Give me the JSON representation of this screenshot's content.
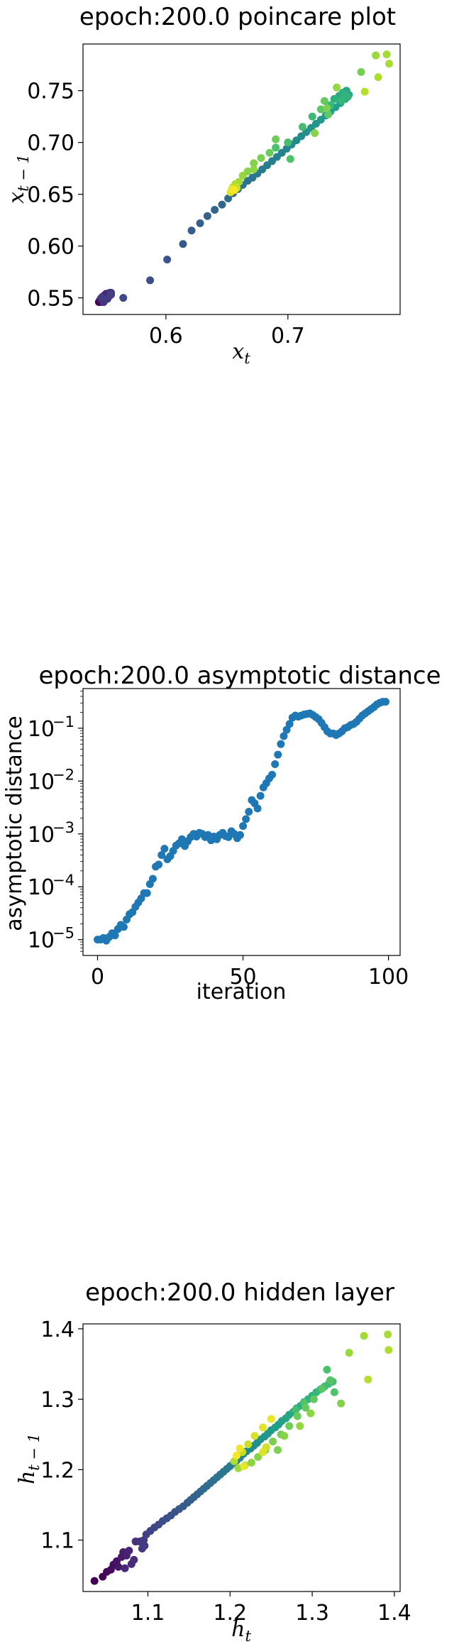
{
  "chart_data": [
    {
      "type": "scatter",
      "title": "epoch:200.0 poincare plot",
      "xlabel": "x_t",
      "ylabel": "x_{t-1}",
      "xticks": [
        {
          "v": 0.6,
          "label": "0.6"
        },
        {
          "v": 0.7,
          "label": "0.7"
        }
      ],
      "yticks": [
        {
          "v": 0.55,
          "label": "0.55"
        },
        {
          "v": 0.6,
          "label": "0.60"
        },
        {
          "v": 0.65,
          "label": "0.65"
        },
        {
          "v": 0.7,
          "label": "0.70"
        },
        {
          "v": 0.75,
          "label": "0.75"
        }
      ],
      "xlim": [
        0.532,
        0.792
      ],
      "ylim": [
        0.534,
        0.795
      ],
      "colormap": "viridis (color encodes iteration)",
      "points": [
        [
          0.545,
          0.546,
          0.0
        ],
        [
          0.546,
          0.547,
          0.01
        ],
        [
          0.547,
          0.546,
          0.02
        ],
        [
          0.548,
          0.548,
          0.03
        ],
        [
          0.546,
          0.548,
          0.04
        ],
        [
          0.549,
          0.549,
          0.05
        ],
        [
          0.548,
          0.551,
          0.06
        ],
        [
          0.55,
          0.55,
          0.07
        ],
        [
          0.551,
          0.552,
          0.08
        ],
        [
          0.55,
          0.553,
          0.09
        ],
        [
          0.552,
          0.552,
          0.1
        ],
        [
          0.553,
          0.554,
          0.11
        ],
        [
          0.551,
          0.554,
          0.12
        ],
        [
          0.554,
          0.555,
          0.13
        ],
        [
          0.553,
          0.551,
          0.14
        ],
        [
          0.555,
          0.555,
          0.15
        ],
        [
          0.549,
          0.546,
          0.16
        ],
        [
          0.552,
          0.549,
          0.17
        ],
        [
          0.547,
          0.55,
          0.18
        ],
        [
          0.555,
          0.553,
          0.19
        ],
        [
          0.565,
          0.55,
          0.22
        ],
        [
          0.587,
          0.567,
          0.24
        ],
        [
          0.601,
          0.587,
          0.26
        ],
        [
          0.614,
          0.602,
          0.28
        ],
        [
          0.621,
          0.615,
          0.29
        ],
        [
          0.628,
          0.622,
          0.3
        ],
        [
          0.634,
          0.629,
          0.31
        ],
        [
          0.64,
          0.635,
          0.32
        ],
        [
          0.646,
          0.64,
          0.33
        ],
        [
          0.651,
          0.646,
          0.34
        ],
        [
          0.655,
          0.651,
          0.35
        ],
        [
          0.659,
          0.655,
          0.36
        ],
        [
          0.663,
          0.659,
          0.37
        ],
        [
          0.667,
          0.663,
          0.38
        ],
        [
          0.671,
          0.666,
          0.39
        ],
        [
          0.675,
          0.67,
          0.4
        ],
        [
          0.679,
          0.674,
          0.41
        ],
        [
          0.683,
          0.678,
          0.42
        ],
        [
          0.687,
          0.682,
          0.43
        ],
        [
          0.691,
          0.686,
          0.44
        ],
        [
          0.695,
          0.69,
          0.45
        ],
        [
          0.699,
          0.694,
          0.46
        ],
        [
          0.703,
          0.698,
          0.47
        ],
        [
          0.707,
          0.702,
          0.48
        ],
        [
          0.711,
          0.706,
          0.49
        ],
        [
          0.715,
          0.71,
          0.5
        ],
        [
          0.719,
          0.714,
          0.51
        ],
        [
          0.723,
          0.718,
          0.52
        ],
        [
          0.727,
          0.722,
          0.53
        ],
        [
          0.731,
          0.726,
          0.54
        ],
        [
          0.735,
          0.73,
          0.55
        ],
        [
          0.739,
          0.734,
          0.56
        ],
        [
          0.743,
          0.738,
          0.57
        ],
        [
          0.747,
          0.742,
          0.58
        ],
        [
          0.75,
          0.746,
          0.59
        ],
        [
          0.748,
          0.75,
          0.6
        ],
        [
          0.745,
          0.748,
          0.61
        ],
        [
          0.742,
          0.745,
          0.62
        ],
        [
          0.738,
          0.742,
          0.63
        ],
        [
          0.746,
          0.747,
          0.64
        ],
        [
          0.749,
          0.744,
          0.65
        ],
        [
          0.744,
          0.74,
          0.66
        ],
        [
          0.735,
          0.736,
          0.67
        ],
        [
          0.72,
          0.725,
          0.68
        ],
        [
          0.7,
          0.7,
          0.7
        ],
        [
          0.712,
          0.715,
          0.69
        ],
        [
          0.69,
          0.695,
          0.71
        ],
        [
          0.702,
          0.684,
          0.72
        ],
        [
          0.727,
          0.732,
          0.74
        ],
        [
          0.733,
          0.727,
          0.75
        ],
        [
          0.685,
          0.69,
          0.77
        ],
        [
          0.69,
          0.703,
          0.78
        ],
        [
          0.678,
          0.685,
          0.8
        ],
        [
          0.672,
          0.68,
          0.81
        ],
        [
          0.667,
          0.672,
          0.82
        ],
        [
          0.663,
          0.668,
          0.84
        ],
        [
          0.672,
          0.674,
          0.83
        ],
        [
          0.66,
          0.662,
          0.86
        ],
        [
          0.657,
          0.66,
          0.88
        ],
        [
          0.655,
          0.657,
          0.9
        ],
        [
          0.658,
          0.656,
          0.92
        ],
        [
          0.653,
          0.652,
          0.95
        ],
        [
          0.654,
          0.655,
          0.97
        ],
        [
          0.656,
          0.654,
          0.99
        ],
        [
          0.73,
          0.74,
          0.76
        ],
        [
          0.76,
          0.768,
          0.79
        ],
        [
          0.772,
          0.784,
          0.85
        ],
        [
          0.781,
          0.785,
          0.86
        ],
        [
          0.783,
          0.776,
          0.87
        ],
        [
          0.774,
          0.763,
          0.88
        ],
        [
          0.763,
          0.749,
          0.89
        ],
        [
          0.74,
          0.753,
          0.84
        ],
        [
          0.722,
          0.709,
          0.82
        ],
        [
          0.732,
          0.733,
          0.8
        ]
      ]
    },
    {
      "type": "scatter",
      "title": "epoch:200.0 asymptotic distance",
      "xlabel": "iteration",
      "ylabel": "asymptotic distance",
      "yscale": "log",
      "xticks": [
        {
          "v": 0,
          "label": "0"
        },
        {
          "v": 50,
          "label": "50"
        },
        {
          "v": 100,
          "label": "100"
        }
      ],
      "yticks": [
        {
          "v": -5,
          "label": "10",
          "exp": "−5"
        },
        {
          "v": -4,
          "label": "10",
          "exp": "−4"
        },
        {
          "v": -3,
          "label": "10",
          "exp": "−3"
        },
        {
          "v": -2,
          "label": "10",
          "exp": "−2"
        },
        {
          "v": -1,
          "label": "10",
          "exp": "−1"
        }
      ],
      "xlim": [
        -5,
        104
      ],
      "ylim_log10": [
        -5.3,
        -0.25
      ],
      "color": "#1f77b4",
      "y_log10": [
        -5.0,
        -5.0,
        -4.97,
        -5.02,
        -4.95,
        -4.88,
        -4.92,
        -4.8,
        -4.72,
        -4.76,
        -4.62,
        -4.52,
        -4.48,
        -4.38,
        -4.3,
        -4.22,
        -4.12,
        -4.12,
        -3.95,
        -3.85,
        -3.62,
        -3.58,
        -3.4,
        -3.28,
        -3.48,
        -3.42,
        -3.32,
        -3.22,
        -3.18,
        -3.1,
        -3.23,
        -3.14,
        -3.06,
        -3.0,
        -3.05,
        -2.98,
        -3.0,
        -3.06,
        -3.02,
        -3.12,
        -3.05,
        -3.1,
        -3.02,
        -2.98,
        -3.04,
        -3.06,
        -2.95,
        -3.0,
        -3.08,
        -3.02,
        -2.85,
        -2.72,
        -2.58,
        -2.36,
        -2.42,
        -2.52,
        -2.28,
        -2.12,
        -2.04,
        -1.95,
        -1.88,
        -1.68,
        -1.5,
        -1.3,
        -1.15,
        -1.03,
        -0.92,
        -0.8,
        -0.76,
        -0.78,
        -0.76,
        -0.74,
        -0.73,
        -0.72,
        -0.75,
        -0.79,
        -0.83,
        -0.9,
        -0.98,
        -1.06,
        -1.1,
        -1.1,
        -1.13,
        -1.1,
        -1.06,
        -1.0,
        -0.98,
        -0.94,
        -0.92,
        -0.88,
        -0.82,
        -0.76,
        -0.72,
        -0.68,
        -0.64,
        -0.6,
        -0.55,
        -0.52,
        -0.5,
        -0.5
      ]
    },
    {
      "type": "scatter",
      "title": "epoch:200.0 hidden layer",
      "xlabel": "h_t",
      "ylabel": "h_{t-1}",
      "xticks": [
        {
          "v": 1.1,
          "label": "1.1"
        },
        {
          "v": 1.2,
          "label": "1.2"
        },
        {
          "v": 1.3,
          "label": "1.3"
        },
        {
          "v": 1.4,
          "label": "1.4"
        }
      ],
      "yticks": [
        {
          "v": 1.1,
          "label": "1.1"
        },
        {
          "v": 1.2,
          "label": "1.2"
        },
        {
          "v": 1.3,
          "label": "1.3"
        },
        {
          "v": 1.4,
          "label": "1.4"
        }
      ],
      "xlim": [
        1.021,
        1.407
      ],
      "ylim": [
        1.027,
        1.407
      ],
      "colormap": "viridis (color encodes iteration)",
      "points": [
        [
          1.035,
          1.042,
          0.0
        ],
        [
          1.045,
          1.048,
          0.01
        ],
        [
          1.05,
          1.055,
          0.02
        ],
        [
          1.055,
          1.058,
          0.03
        ],
        [
          1.058,
          1.065,
          0.04
        ],
        [
          1.062,
          1.07,
          0.05
        ],
        [
          1.064,
          1.062,
          0.06
        ],
        [
          1.068,
          1.076,
          0.07
        ],
        [
          1.07,
          1.083,
          0.08
        ],
        [
          1.074,
          1.078,
          0.09
        ],
        [
          1.077,
          1.085,
          0.1
        ],
        [
          1.072,
          1.06,
          0.11
        ],
        [
          1.08,
          1.066,
          0.12
        ],
        [
          1.083,
          1.072,
          0.13
        ],
        [
          1.085,
          1.098,
          0.14
        ],
        [
          1.09,
          1.098,
          0.15
        ],
        [
          1.093,
          1.088,
          0.16
        ],
        [
          1.095,
          1.1,
          0.17
        ],
        [
          1.096,
          1.092,
          0.18
        ],
        [
          1.098,
          1.108,
          0.19
        ],
        [
          1.103,
          1.113,
          0.2
        ],
        [
          1.108,
          1.118,
          0.21
        ],
        [
          1.113,
          1.122,
          0.22
        ],
        [
          1.118,
          1.127,
          0.23
        ],
        [
          1.123,
          1.131,
          0.24
        ],
        [
          1.128,
          1.135,
          0.25
        ],
        [
          1.133,
          1.14,
          0.26
        ],
        [
          1.138,
          1.144,
          0.27
        ],
        [
          1.143,
          1.148,
          0.28
        ],
        [
          1.148,
          1.153,
          0.29
        ],
        [
          1.152,
          1.157,
          0.3
        ],
        [
          1.156,
          1.161,
          0.31
        ],
        [
          1.16,
          1.165,
          0.32
        ],
        [
          1.164,
          1.169,
          0.33
        ],
        [
          1.168,
          1.173,
          0.34
        ],
        [
          1.172,
          1.177,
          0.35
        ],
        [
          1.176,
          1.181,
          0.36
        ],
        [
          1.18,
          1.185,
          0.37
        ],
        [
          1.184,
          1.189,
          0.38
        ],
        [
          1.188,
          1.193,
          0.39
        ],
        [
          1.192,
          1.197,
          0.4
        ],
        [
          1.196,
          1.201,
          0.41
        ],
        [
          1.2,
          1.205,
          0.42
        ],
        [
          1.204,
          1.209,
          0.43
        ],
        [
          1.208,
          1.213,
          0.44
        ],
        [
          1.212,
          1.217,
          0.45
        ],
        [
          1.216,
          1.222,
          0.46
        ],
        [
          1.22,
          1.226,
          0.47
        ],
        [
          1.225,
          1.23,
          0.48
        ],
        [
          1.229,
          1.234,
          0.49
        ],
        [
          1.233,
          1.238,
          0.5
        ],
        [
          1.237,
          1.243,
          0.51
        ],
        [
          1.242,
          1.247,
          0.52
        ],
        [
          1.246,
          1.251,
          0.53
        ],
        [
          1.25,
          1.256,
          0.54
        ],
        [
          1.255,
          1.26,
          0.55
        ],
        [
          1.259,
          1.264,
          0.56
        ],
        [
          1.263,
          1.269,
          0.57
        ],
        [
          1.268,
          1.273,
          0.58
        ],
        [
          1.272,
          1.278,
          0.59
        ],
        [
          1.277,
          1.282,
          0.6
        ],
        [
          1.281,
          1.287,
          0.61
        ],
        [
          1.286,
          1.291,
          0.62
        ],
        [
          1.29,
          1.296,
          0.63
        ],
        [
          1.295,
          1.3,
          0.64
        ],
        [
          1.3,
          1.305,
          0.65
        ],
        [
          1.305,
          1.31,
          0.66
        ],
        [
          1.31,
          1.314,
          0.67
        ],
        [
          1.315,
          1.318,
          0.68
        ],
        [
          1.32,
          1.322,
          0.69
        ],
        [
          1.325,
          1.325,
          0.7
        ],
        [
          1.318,
          1.342,
          0.71
        ],
        [
          1.327,
          1.31,
          0.72
        ],
        [
          1.322,
          1.327,
          0.73
        ],
        [
          1.312,
          1.315,
          0.74
        ],
        [
          1.302,
          1.3,
          0.75
        ],
        [
          1.292,
          1.288,
          0.76
        ],
        [
          1.282,
          1.276,
          0.77
        ],
        [
          1.272,
          1.262,
          0.78
        ],
        [
          1.262,
          1.25,
          0.79
        ],
        [
          1.252,
          1.24,
          0.8
        ],
        [
          1.243,
          1.228,
          0.81
        ],
        [
          1.234,
          1.218,
          0.82
        ],
        [
          1.226,
          1.21,
          0.83
        ],
        [
          1.218,
          1.206,
          0.84
        ],
        [
          1.21,
          1.202,
          0.86
        ],
        [
          1.205,
          1.212,
          0.88
        ],
        [
          1.215,
          1.225,
          0.9
        ],
        [
          1.222,
          1.236,
          0.92
        ],
        [
          1.23,
          1.248,
          0.94
        ],
        [
          1.24,
          1.26,
          0.96
        ],
        [
          1.25,
          1.272,
          0.97
        ],
        [
          1.212,
          1.23,
          0.98
        ],
        [
          1.208,
          1.22,
          0.99
        ],
        [
          1.217,
          1.205,
          0.97
        ],
        [
          1.28,
          1.285,
          0.7
        ],
        [
          1.29,
          1.295,
          0.72
        ],
        [
          1.258,
          1.228,
          0.8
        ],
        [
          1.266,
          1.248,
          0.82
        ],
        [
          1.285,
          1.262,
          0.84
        ],
        [
          1.298,
          1.28,
          0.83
        ],
        [
          1.335,
          1.294,
          0.81
        ],
        [
          1.345,
          1.366,
          0.85
        ],
        [
          1.363,
          1.39,
          0.86
        ],
        [
          1.392,
          1.392,
          0.87
        ],
        [
          1.393,
          1.37,
          0.88
        ],
        [
          1.368,
          1.328,
          0.89
        ],
        [
          1.24,
          1.225,
          0.95
        ],
        [
          1.244,
          1.232,
          0.93
        ]
      ]
    }
  ]
}
